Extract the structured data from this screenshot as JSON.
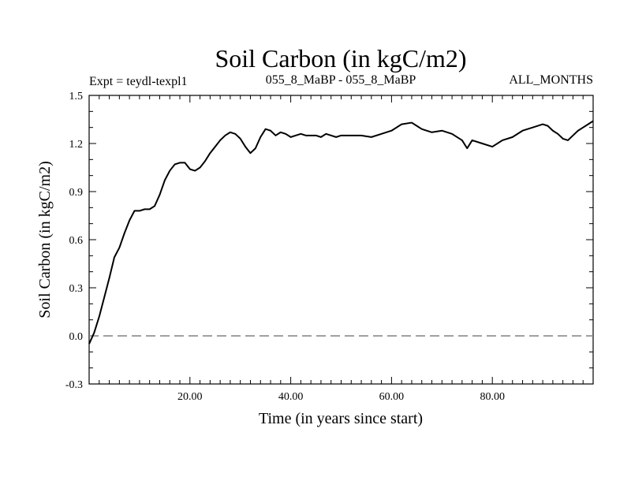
{
  "chart_data": {
    "type": "line",
    "title": "Soil Carbon (in kgC/m2)",
    "header_left": "Expt = teydl-texpl1",
    "header_center": "055_8_MaBP - 055_8_MaBP",
    "header_right": "ALL_MONTHS",
    "xlabel": "Time (in years since start)",
    "ylabel": "Soil Carbon (in kgC/m2)",
    "xlim": [
      0,
      100
    ],
    "ylim": [
      -0.3,
      1.5
    ],
    "xticks": [
      20,
      40,
      60,
      80
    ],
    "xtick_labels": [
      "20.00",
      "40.00",
      "60.00",
      "80.00"
    ],
    "yticks": [
      -0.3,
      0.0,
      0.3,
      0.6,
      0.9,
      1.2,
      1.5
    ],
    "ytick_labels": [
      "-0.3",
      "0.0",
      "0.3",
      "0.6",
      "0.9",
      "1.2",
      "1.5"
    ],
    "reference_line": {
      "y": 0.0,
      "style": "dashed",
      "color": "#808080"
    },
    "series": [
      {
        "name": "Soil Carbon",
        "color": "#000000",
        "x": [
          0,
          1,
          2,
          3,
          4,
          5,
          6,
          7,
          8,
          9,
          10,
          11,
          12,
          13,
          14,
          15,
          16,
          17,
          18,
          19,
          20,
          21,
          22,
          23,
          24,
          25,
          26,
          27,
          28,
          29,
          30,
          31,
          32,
          33,
          34,
          35,
          36,
          37,
          38,
          39,
          40,
          41,
          42,
          43,
          44,
          45,
          46,
          47,
          48,
          49,
          50,
          52,
          54,
          56,
          58,
          60,
          62,
          64,
          65,
          66,
          68,
          70,
          72,
          74,
          75,
          76,
          78,
          80,
          82,
          84,
          86,
          88,
          90,
          91,
          92,
          93,
          94,
          95,
          96,
          97,
          98,
          99,
          100
        ],
        "values": [
          -0.05,
          0.02,
          0.12,
          0.24,
          0.36,
          0.49,
          0.55,
          0.64,
          0.72,
          0.78,
          0.78,
          0.79,
          0.79,
          0.81,
          0.88,
          0.97,
          1.03,
          1.07,
          1.08,
          1.08,
          1.04,
          1.03,
          1.05,
          1.09,
          1.14,
          1.18,
          1.22,
          1.25,
          1.27,
          1.26,
          1.23,
          1.18,
          1.14,
          1.17,
          1.24,
          1.29,
          1.28,
          1.25,
          1.27,
          1.26,
          1.24,
          1.25,
          1.26,
          1.25,
          1.25,
          1.25,
          1.24,
          1.26,
          1.25,
          1.24,
          1.25,
          1.25,
          1.25,
          1.24,
          1.26,
          1.28,
          1.32,
          1.33,
          1.31,
          1.29,
          1.27,
          1.28,
          1.26,
          1.22,
          1.17,
          1.22,
          1.2,
          1.18,
          1.22,
          1.24,
          1.28,
          1.3,
          1.32,
          1.31,
          1.28,
          1.26,
          1.23,
          1.22,
          1.25,
          1.28,
          1.3,
          1.32,
          1.34
        ]
      }
    ]
  }
}
